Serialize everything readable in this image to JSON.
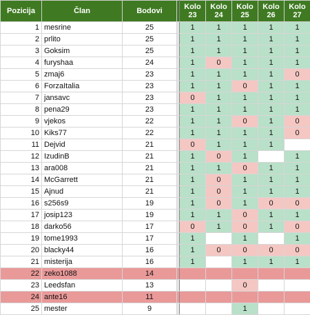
{
  "headers": {
    "position": "Pozicija",
    "member": "Član",
    "points": "Bodovi",
    "rounds": [
      {
        "l1": "Kolo",
        "l2": "23"
      },
      {
        "l1": "Kolo",
        "l2": "24"
      },
      {
        "l1": "Kolo",
        "l2": "25"
      },
      {
        "l1": "Kolo",
        "l2": "26"
      },
      {
        "l1": "Kolo",
        "l2": "27"
      }
    ]
  },
  "colors": {
    "header_bg": "#3f7a22",
    "one_bg": "#b9e0c8",
    "zero_bg": "#f4c7c3",
    "relegated_bg": "#ea9999"
  },
  "rows": [
    {
      "pos": "1",
      "member": "mesrine",
      "points": "25",
      "rounds": [
        "1",
        "1",
        "1",
        "1",
        "1"
      ],
      "relegated": false
    },
    {
      "pos": "2",
      "member": "prlito",
      "points": "25",
      "rounds": [
        "1",
        "1",
        "1",
        "1",
        "1"
      ],
      "relegated": false
    },
    {
      "pos": "3",
      "member": "Goksim",
      "points": "25",
      "rounds": [
        "1",
        "1",
        "1",
        "1",
        "1"
      ],
      "relegated": false
    },
    {
      "pos": "4",
      "member": "furyshaa",
      "points": "24",
      "rounds": [
        "1",
        "0",
        "1",
        "1",
        "1"
      ],
      "relegated": false
    },
    {
      "pos": "5",
      "member": "zmaj6",
      "points": "23",
      "rounds": [
        "1",
        "1",
        "1",
        "1",
        "0"
      ],
      "relegated": false
    },
    {
      "pos": "6",
      "member": "ForzaItalia",
      "points": "23",
      "rounds": [
        "1",
        "1",
        "0",
        "1",
        "1"
      ],
      "relegated": false
    },
    {
      "pos": "7",
      "member": "jansavc",
      "points": "23",
      "rounds": [
        "0",
        "1",
        "1",
        "1",
        "1"
      ],
      "relegated": false
    },
    {
      "pos": "8",
      "member": "pena29",
      "points": "23",
      "rounds": [
        "1",
        "1",
        "1",
        "1",
        "1"
      ],
      "relegated": false
    },
    {
      "pos": "9",
      "member": "vjekos",
      "points": "22",
      "rounds": [
        "1",
        "1",
        "0",
        "1",
        "0"
      ],
      "relegated": false
    },
    {
      "pos": "10",
      "member": "Kiks77",
      "points": "22",
      "rounds": [
        "1",
        "1",
        "1",
        "1",
        "0"
      ],
      "relegated": false
    },
    {
      "pos": "11",
      "member": "Dejvid",
      "points": "21",
      "rounds": [
        "0",
        "1",
        "1",
        "1",
        ""
      ],
      "relegated": false
    },
    {
      "pos": "12",
      "member": "IzudinB",
      "points": "21",
      "rounds": [
        "1",
        "0",
        "1",
        "",
        "1"
      ],
      "relegated": false
    },
    {
      "pos": "13",
      "member": "ara008",
      "points": "21",
      "rounds": [
        "1",
        "1",
        "0",
        "1",
        "1"
      ],
      "relegated": false
    },
    {
      "pos": "14",
      "member": "McGarrett",
      "points": "21",
      "rounds": [
        "1",
        "0",
        "1",
        "1",
        "1"
      ],
      "relegated": false
    },
    {
      "pos": "15",
      "member": "Ajnud",
      "points": "21",
      "rounds": [
        "1",
        "0",
        "1",
        "1",
        "1"
      ],
      "relegated": false
    },
    {
      "pos": "16",
      "member": "s256s9",
      "points": "19",
      "rounds": [
        "1",
        "0",
        "1",
        "0",
        "0"
      ],
      "relegated": false
    },
    {
      "pos": "17",
      "member": "josip123",
      "points": "19",
      "rounds": [
        "1",
        "1",
        "0",
        "1",
        "1"
      ],
      "relegated": false
    },
    {
      "pos": "18",
      "member": "darko56",
      "points": "17",
      "rounds": [
        "0",
        "1",
        "0",
        "1",
        "0"
      ],
      "relegated": false
    },
    {
      "pos": "19",
      "member": "tome1993",
      "points": "17",
      "rounds": [
        "1",
        "",
        "1",
        "",
        "1"
      ],
      "relegated": false
    },
    {
      "pos": "20",
      "member": "blacky44",
      "points": "16",
      "rounds": [
        "1",
        "0",
        "0",
        "0",
        "0"
      ],
      "relegated": false
    },
    {
      "pos": "21",
      "member": "misterija",
      "points": "16",
      "rounds": [
        "1",
        "",
        "1",
        "1",
        "1"
      ],
      "relegated": false
    },
    {
      "pos": "22",
      "member": "zeko1088",
      "points": "14",
      "rounds": [
        "",
        "",
        "",
        "",
        ""
      ],
      "relegated": true
    },
    {
      "pos": "23",
      "member": "Leedsfan",
      "points": "13",
      "rounds": [
        "",
        "",
        "0",
        "",
        ""
      ],
      "relegated": false
    },
    {
      "pos": "24",
      "member": "ante16",
      "points": "11",
      "rounds": [
        "",
        "",
        "",
        "",
        ""
      ],
      "relegated": true
    },
    {
      "pos": "25",
      "member": "mester",
      "points": "9",
      "rounds": [
        "",
        "",
        "1",
        "",
        ""
      ],
      "relegated": false
    }
  ]
}
